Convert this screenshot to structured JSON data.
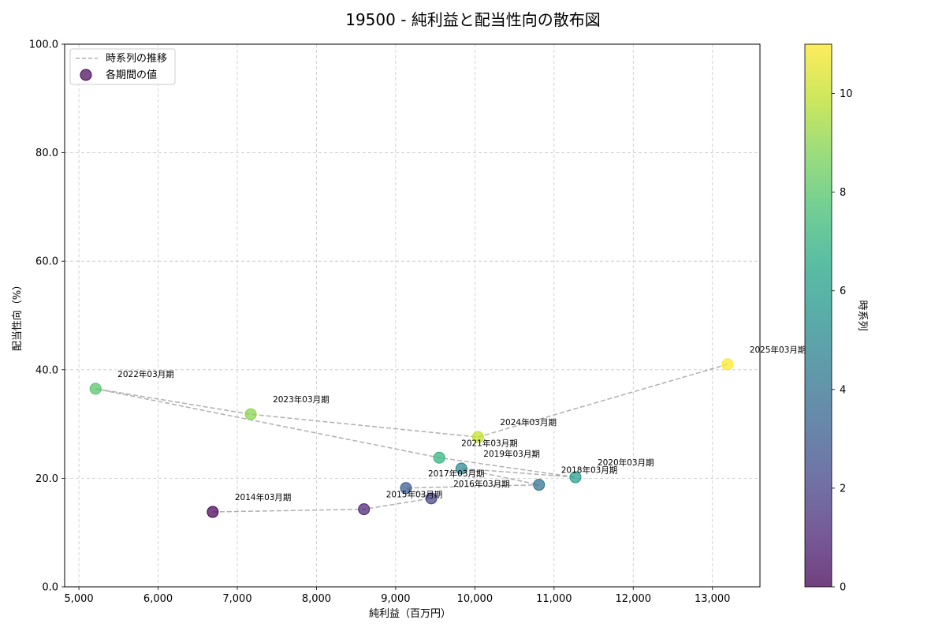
{
  "chart_data": {
    "type": "scatter",
    "title": "19500 - 純利益と配当性向の散布図",
    "xlabel": "純利益（百万円）",
    "ylabel": "配当性向（%）",
    "xlim": [
      4820,
      13600
    ],
    "ylim": [
      0,
      100
    ],
    "xticks": [
      5000,
      6000,
      7000,
      8000,
      9000,
      10000,
      11000,
      12000,
      13000
    ],
    "xtick_labels": [
      "5,000",
      "6,000",
      "7,000",
      "8,000",
      "9,000",
      "10,000",
      "11,000",
      "12,000",
      "13,000"
    ],
    "yticks": [
      0,
      20,
      40,
      60,
      80,
      100
    ],
    "ytick_labels": [
      "0.0",
      "20.0",
      "40.0",
      "60.0",
      "80.0",
      "100.0"
    ],
    "grid": true,
    "legend": {
      "location": "top-left",
      "entries": [
        "時系列の推移",
        "各期間の値"
      ]
    },
    "colorbar": {
      "label": "時系列",
      "range": [
        0,
        11
      ],
      "ticks": [
        0,
        2,
        4,
        6,
        8,
        10
      ],
      "tick_labels": [
        "0",
        "2",
        "4",
        "6",
        "8",
        "10"
      ]
    },
    "points": [
      {
        "label": "2014年03月期",
        "x": 6690,
        "y": 13.8,
        "t": 0
      },
      {
        "label": "2015年03月期",
        "x": 8600,
        "y": 14.3,
        "t": 1
      },
      {
        "label": "2016年03月期",
        "x": 9450,
        "y": 16.3,
        "t": 2
      },
      {
        "label": "2017年03月期",
        "x": 9130,
        "y": 18.2,
        "t": 3
      },
      {
        "label": "2018年03月期",
        "x": 10810,
        "y": 18.8,
        "t": 4
      },
      {
        "label": "2019年03月期",
        "x": 9830,
        "y": 21.8,
        "t": 5
      },
      {
        "label": "2020年03月期",
        "x": 11270,
        "y": 20.2,
        "t": 6
      },
      {
        "label": "2021年03月期",
        "x": 9550,
        "y": 23.8,
        "t": 7
      },
      {
        "label": "2022年03月期",
        "x": 5210,
        "y": 36.5,
        "t": 8
      },
      {
        "label": "2023年03月期",
        "x": 7170,
        "y": 31.8,
        "t": 9
      },
      {
        "label": "2024年03月期",
        "x": 10040,
        "y": 27.6,
        "t": 10
      },
      {
        "label": "2025年03月期",
        "x": 13190,
        "y": 41.0,
        "t": 11
      }
    ]
  }
}
